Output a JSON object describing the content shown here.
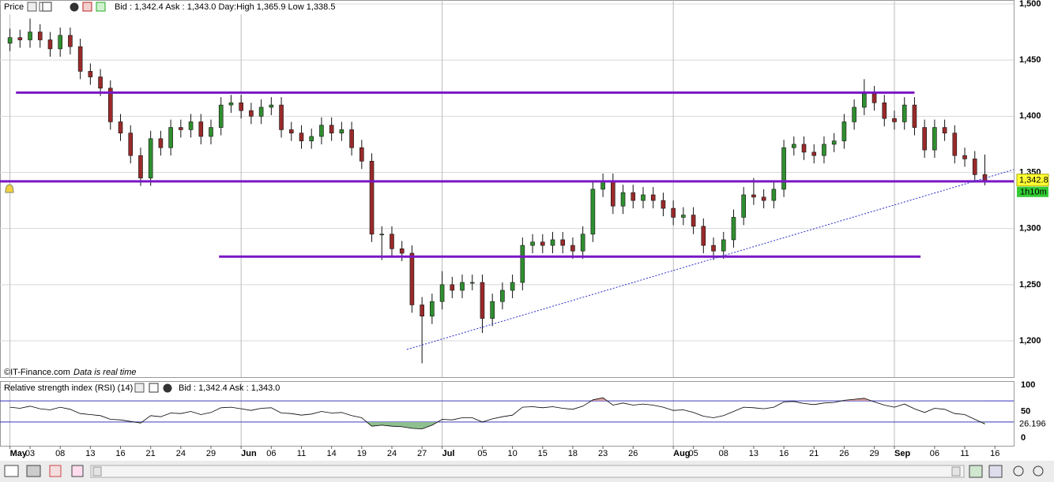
{
  "chart_data": [
    {
      "type": "candlestick",
      "title": "Price",
      "info": "Bid : 1,342.4  Ask : 1,343.0  Day:High 1,365.9  Low 1,338.5",
      "source": "©IT-Finance.com",
      "note": "Data is real time",
      "last_label": "1,342.8",
      "timer": "1h10m",
      "up_color": "#2f8f2f",
      "down_color": "#9a2a2a",
      "level_color": "#7a16c6",
      "trend_color": "#2a2ad0",
      "xlim": [
        -0.99,
        99.87
      ],
      "ylim": [
        1167.7,
        1503.5
      ],
      "yticks": [
        {
          "value": 1500,
          "label": "1,500"
        },
        {
          "value": 1450,
          "label": "1,450"
        },
        {
          "value": 1400,
          "label": "1,400"
        },
        {
          "value": 1350,
          "label": "1,350"
        },
        {
          "value": 1300,
          "label": "1,300"
        },
        {
          "value": 1250,
          "label": "1,250"
        },
        {
          "value": 1200,
          "label": "1,200"
        }
      ],
      "xticks": [
        {
          "value": 0,
          "label": "May"
        },
        {
          "value": 2,
          "label": "03"
        },
        {
          "value": 5,
          "label": "08"
        },
        {
          "value": 8,
          "label": "13"
        },
        {
          "value": 11,
          "label": "16"
        },
        {
          "value": 14,
          "label": "21"
        },
        {
          "value": 17,
          "label": "24"
        },
        {
          "value": 20,
          "label": "29"
        },
        {
          "value": 23,
          "label": "Jun"
        },
        {
          "value": 26,
          "label": "06"
        },
        {
          "value": 29,
          "label": "11"
        },
        {
          "value": 32,
          "label": "14"
        },
        {
          "value": 35,
          "label": "19"
        },
        {
          "value": 38,
          "label": "24"
        },
        {
          "value": 41,
          "label": "27"
        },
        {
          "value": 43,
          "label": "Jul"
        },
        {
          "value": 47,
          "label": "05"
        },
        {
          "value": 50,
          "label": "10"
        },
        {
          "value": 53,
          "label": "15"
        },
        {
          "value": 56,
          "label": "18"
        },
        {
          "value": 59,
          "label": "23"
        },
        {
          "value": 62,
          "label": "26"
        },
        {
          "value": 66,
          "label": "Aug"
        },
        {
          "value": 68,
          "label": "05"
        },
        {
          "value": 71,
          "label": "08"
        },
        {
          "value": 74,
          "label": "13"
        },
        {
          "value": 77,
          "label": "16"
        },
        {
          "value": 80,
          "label": "21"
        },
        {
          "value": 83,
          "label": "26"
        },
        {
          "value": 86,
          "label": "29"
        },
        {
          "value": 88,
          "label": "Sep"
        },
        {
          "value": 92,
          "label": "06"
        },
        {
          "value": 95,
          "label": "11"
        },
        {
          "value": 98,
          "label": "16"
        }
      ],
      "level_lines": [
        {
          "value": 1421,
          "x": [
            0.6,
            90
          ]
        },
        {
          "value": 1342,
          "x": [
            -0.99,
            99.87
          ]
        },
        {
          "value": 1275,
          "x": [
            20.8,
            90.6
          ]
        }
      ],
      "trend_line": {
        "x": [
          39.5,
          99.87
        ],
        "y": [
          1192.3,
          1352.5
        ]
      },
      "ohlc": [
        [
          1465,
          1478,
          1458,
          1470
        ],
        [
          1470,
          1477,
          1461,
          1468
        ],
        [
          1468,
          1487,
          1461,
          1475
        ],
        [
          1475,
          1482,
          1461,
          1468
        ],
        [
          1468,
          1475,
          1453,
          1460
        ],
        [
          1460,
          1479,
          1453,
          1472
        ],
        [
          1472,
          1479,
          1455,
          1462
        ],
        [
          1462,
          1469,
          1433,
          1440
        ],
        [
          1440,
          1447,
          1428,
          1435
        ],
        [
          1435,
          1442,
          1418,
          1425
        ],
        [
          1425,
          1432,
          1388,
          1395
        ],
        [
          1395,
          1402,
          1378,
          1385
        ],
        [
          1385,
          1392,
          1358,
          1365
        ],
        [
          1365,
          1372,
          1338,
          1345
        ],
        [
          1345,
          1387,
          1338,
          1380
        ],
        [
          1380,
          1387,
          1365,
          1372
        ],
        [
          1372,
          1397,
          1365,
          1390
        ],
        [
          1390,
          1397,
          1381,
          1388
        ],
        [
          1388,
          1402,
          1381,
          1395
        ],
        [
          1395,
          1402,
          1375,
          1382
        ],
        [
          1382,
          1397,
          1375,
          1390
        ],
        [
          1390,
          1417,
          1383,
          1410
        ],
        [
          1410,
          1419,
          1403,
          1412
        ],
        [
          1412,
          1419,
          1398,
          1405
        ],
        [
          1405,
          1412,
          1393,
          1400
        ],
        [
          1400,
          1415,
          1393,
          1408
        ],
        [
          1408,
          1417,
          1401,
          1410
        ],
        [
          1410,
          1417,
          1381,
          1388
        ],
        [
          1388,
          1395,
          1378,
          1385
        ],
        [
          1385,
          1392,
          1371,
          1378
        ],
        [
          1378,
          1389,
          1371,
          1382
        ],
        [
          1382,
          1399,
          1375,
          1392
        ],
        [
          1392,
          1399,
          1378,
          1385
        ],
        [
          1385,
          1395,
          1378,
          1388
        ],
        [
          1388,
          1395,
          1365,
          1372
        ],
        [
          1372,
          1379,
          1353,
          1360
        ],
        [
          1360,
          1367,
          1288,
          1295
        ],
        [
          1295,
          1302,
          1272,
          1295
        ],
        [
          1295,
          1302,
          1275,
          1282
        ],
        [
          1282,
          1289,
          1271,
          1278
        ],
        [
          1278,
          1285,
          1225,
          1232
        ],
        [
          1232,
          1239,
          1180,
          1222
        ],
        [
          1222,
          1242,
          1215,
          1235
        ],
        [
          1235,
          1262,
          1228,
          1250
        ],
        [
          1250,
          1257,
          1238,
          1245
        ],
        [
          1245,
          1259,
          1238,
          1252
        ],
        [
          1252,
          1259,
          1245,
          1252
        ],
        [
          1252,
          1259,
          1207,
          1220
        ],
        [
          1220,
          1242,
          1213,
          1235
        ],
        [
          1235,
          1252,
          1228,
          1245
        ],
        [
          1245,
          1259,
          1238,
          1252
        ],
        [
          1252,
          1292,
          1245,
          1285
        ],
        [
          1285,
          1295,
          1278,
          1288
        ],
        [
          1288,
          1295,
          1278,
          1285
        ],
        [
          1285,
          1297,
          1278,
          1290
        ],
        [
          1290,
          1297,
          1278,
          1285
        ],
        [
          1285,
          1292,
          1273,
          1280
        ],
        [
          1280,
          1302,
          1273,
          1295
        ],
        [
          1295,
          1342,
          1288,
          1335
        ],
        [
          1335,
          1349,
          1328,
          1342
        ],
        [
          1342,
          1349,
          1313,
          1320
        ],
        [
          1320,
          1339,
          1313,
          1332
        ],
        [
          1332,
          1339,
          1318,
          1325
        ],
        [
          1325,
          1337,
          1318,
          1330
        ],
        [
          1330,
          1337,
          1318,
          1325
        ],
        [
          1325,
          1332,
          1311,
          1318
        ],
        [
          1318,
          1325,
          1303,
          1310
        ],
        [
          1310,
          1319,
          1303,
          1312
        ],
        [
          1312,
          1319,
          1295,
          1302
        ],
        [
          1302,
          1309,
          1278,
          1285
        ],
        [
          1285,
          1292,
          1272,
          1280
        ],
        [
          1280,
          1297,
          1273,
          1290
        ],
        [
          1290,
          1317,
          1283,
          1310
        ],
        [
          1310,
          1337,
          1303,
          1330
        ],
        [
          1330,
          1345,
          1321,
          1328
        ],
        [
          1328,
          1335,
          1318,
          1325
        ],
        [
          1325,
          1342,
          1318,
          1335
        ],
        [
          1335,
          1379,
          1328,
          1372
        ],
        [
          1372,
          1382,
          1365,
          1375
        ],
        [
          1375,
          1382,
          1361,
          1368
        ],
        [
          1368,
          1375,
          1358,
          1365
        ],
        [
          1365,
          1382,
          1358,
          1375
        ],
        [
          1375,
          1385,
          1368,
          1378
        ],
        [
          1378,
          1402,
          1371,
          1395
        ],
        [
          1395,
          1415,
          1388,
          1408
        ],
        [
          1408,
          1433,
          1401,
          1420
        ],
        [
          1420,
          1427,
          1405,
          1412
        ],
        [
          1412,
          1419,
          1391,
          1398
        ],
        [
          1398,
          1405,
          1388,
          1395
        ],
        [
          1395,
          1417,
          1388,
          1410
        ],
        [
          1410,
          1417,
          1383,
          1390
        ],
        [
          1390,
          1397,
          1363,
          1370
        ],
        [
          1370,
          1397,
          1363,
          1390
        ],
        [
          1390,
          1397,
          1378,
          1385
        ],
        [
          1385,
          1392,
          1358,
          1365
        ],
        [
          1365,
          1372,
          1355,
          1362
        ],
        [
          1362,
          1369,
          1341,
          1348
        ],
        [
          1348,
          1365.9,
          1338.5,
          1342.8
        ]
      ]
    },
    {
      "type": "line",
      "title": "Relative strength index (RSI) (14)",
      "info": "Bid : 1,342.4  Ask : 1,343.0",
      "color": "#000000",
      "level_color": "#3030c0",
      "over_color": "#d9a0a0",
      "under_color": "#8fc08f",
      "ylim": [
        -15,
        107.5
      ],
      "yticks": [
        100,
        50,
        0
      ],
      "levels": [
        70,
        30
      ],
      "values": [
        58,
        56,
        60,
        55,
        53,
        58,
        54,
        46,
        44,
        42,
        35,
        34,
        31,
        28,
        42,
        40,
        47,
        46,
        50,
        44,
        48,
        57,
        58,
        55,
        52,
        56,
        57,
        47,
        46,
        43,
        45,
        50,
        47,
        48,
        42,
        38,
        22,
        24,
        22,
        21,
        18,
        17,
        24,
        35,
        34,
        38,
        38,
        30,
        36,
        40,
        43,
        58,
        59,
        57,
        59,
        56,
        54,
        60,
        72,
        76,
        62,
        66,
        62,
        64,
        62,
        58,
        52,
        53,
        48,
        41,
        38,
        42,
        50,
        58,
        57,
        55,
        58,
        68,
        69,
        65,
        63,
        66,
        67,
        71,
        73,
        75,
        68,
        62,
        58,
        64,
        55,
        48,
        56,
        54,
        46,
        44,
        35,
        26.196
      ]
    }
  ]
}
